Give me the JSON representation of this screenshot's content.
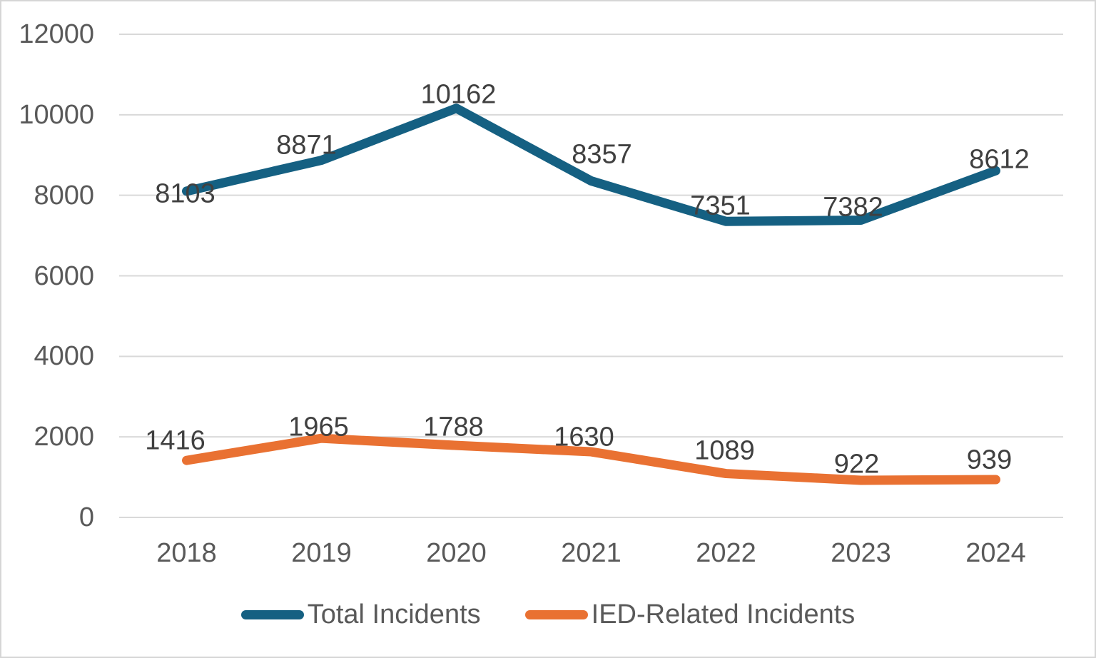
{
  "chart_data": {
    "type": "line",
    "categories": [
      "2018",
      "2019",
      "2020",
      "2021",
      "2022",
      "2023",
      "2024"
    ],
    "series": [
      {
        "name": "Total Incidents",
        "values": [
          8103,
          8871,
          10162,
          8357,
          7351,
          7382,
          8612
        ],
        "color": "#156082"
      },
      {
        "name": "IED-Related Incidents",
        "values": [
          1416,
          1965,
          1788,
          1630,
          1089,
          922,
          939
        ],
        "color": "#E97132"
      }
    ],
    "title": "",
    "xlabel": "",
    "ylabel": "",
    "ylim": [
      0,
      12000
    ],
    "yticks": [
      0,
      2000,
      4000,
      6000,
      8000,
      10000,
      12000
    ],
    "grid": true,
    "data_labels": true,
    "legend_position": "bottom"
  },
  "colors": {
    "gridline": "#D9D9D9",
    "axis_text": "#595959",
    "data_label_text": "#404040",
    "background": "#FFFFFF",
    "frame_border": "#D6D6D6"
  }
}
